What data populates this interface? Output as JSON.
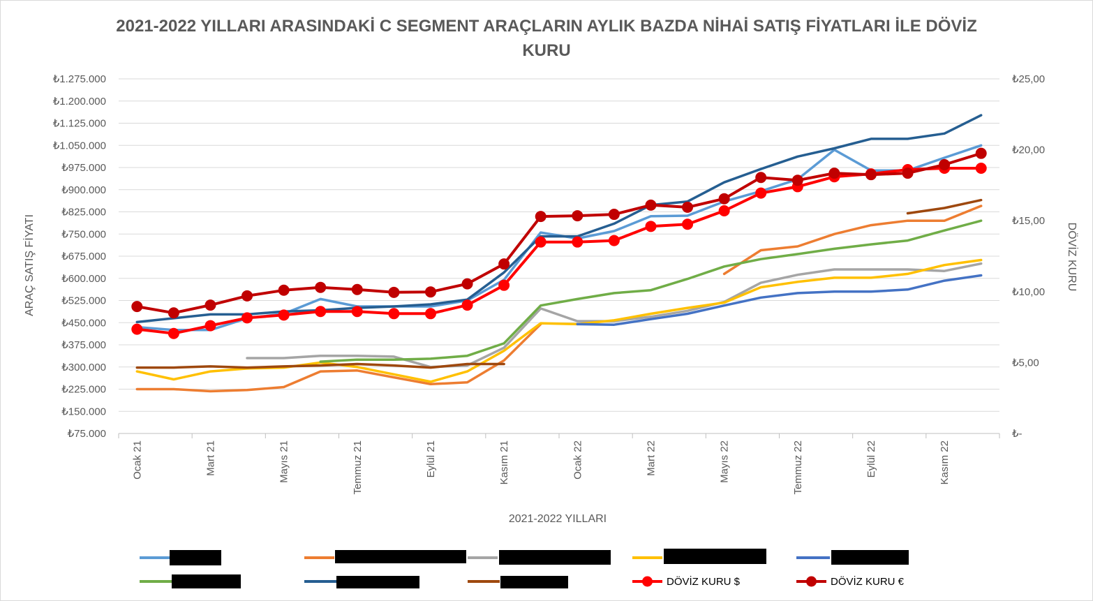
{
  "chart_data": {
    "type": "line",
    "title_lines": [
      "2021-2022 YILLARI ARASINDAKİ C SEGMENT ARAÇLARIN AYLIK BAZDA NİHAİ SATIŞ FİYATLARI İLE DÖVİZ",
      "KURU"
    ],
    "xlabel": "2021-2022 YILLARI",
    "ylabel": "ARAÇ SATIŞ FİYATI",
    "y2label": "DÖVİZ KURU",
    "ylim": [
      75000,
      1275000
    ],
    "y2lim": [
      0,
      25
    ],
    "y_ticks": [
      "₺75.000",
      "₺150.000",
      "₺225.000",
      "₺300.000",
      "₺375.000",
      "₺450.000",
      "₺525.000",
      "₺600.000",
      "₺675.000",
      "₺750.000",
      "₺825.000",
      "₺900.000",
      "₺975.000",
      "₺1.050.000",
      "₺1.125.000",
      "₺1.200.000",
      "₺1.275.000"
    ],
    "y2_ticks": [
      "₺-",
      "₺5,00",
      "₺10,00",
      "₺15,00",
      "₺20,00",
      "₺25,00"
    ],
    "x_labels": [
      "Ocak 21",
      "Mart 21",
      "Mayıs 21",
      "Temmuz 21",
      "Eylül 21",
      "Kasım 21",
      "Ocak 22",
      "Mart 22",
      "Mayıs 22",
      "Temmuz 22",
      "Eylül 22",
      "Kasım 22"
    ],
    "months": 24,
    "grid": true,
    "legend_position": "bottom",
    "series": [
      {
        "color": "#5B9BD5",
        "axis": "left",
        "marker": false,
        "values": [
          435000,
          425000,
          425000,
          465000,
          480000,
          530000,
          505000,
          505000,
          505000,
          525000,
          595000,
          755000,
          735000,
          760000,
          810000,
          812000,
          860000,
          895000,
          935000,
          1035000,
          965000,
          965000,
          1008000,
          1050000
        ]
      },
      {
        "color": "#ED7D31",
        "axis": "left",
        "marker": false,
        "values": [
          225000,
          225000,
          218000,
          222000,
          232000,
          285000,
          288000,
          265000,
          242000,
          248000,
          322000,
          445000,
          null,
          null,
          null,
          null,
          615000,
          695000,
          708000,
          750000,
          780000,
          795000,
          795000,
          845000
        ]
      },
      {
        "color": "#A5A5A5",
        "axis": "left",
        "marker": false,
        "values": [
          null,
          null,
          null,
          330000,
          330000,
          338000,
          338000,
          335000,
          300000,
          305000,
          365000,
          498000,
          455000,
          455000,
          470000,
          490000,
          520000,
          585000,
          612000,
          630000,
          630000,
          630000,
          625000,
          650000
        ]
      },
      {
        "color": "#FFC000",
        "axis": "left",
        "marker": false,
        "values": [
          285000,
          258000,
          285000,
          295000,
          298000,
          315000,
          300000,
          275000,
          250000,
          285000,
          355000,
          448000,
          445000,
          458000,
          480000,
          500000,
          518000,
          570000,
          588000,
          602000,
          602000,
          615000,
          645000,
          662000
        ]
      },
      {
        "color": "#4472C4",
        "axis": "left",
        "marker": false,
        "values": [
          null,
          null,
          null,
          null,
          null,
          null,
          null,
          null,
          null,
          null,
          null,
          null,
          445000,
          443000,
          462000,
          480000,
          508000,
          535000,
          550000,
          555000,
          555000,
          562000,
          592000,
          610000
        ]
      },
      {
        "color": "#70AD47",
        "axis": "left",
        "marker": false,
        "values": [
          null,
          null,
          null,
          null,
          null,
          318000,
          325000,
          325000,
          328000,
          338000,
          380000,
          508000,
          530000,
          550000,
          560000,
          598000,
          640000,
          665000,
          682000,
          700000,
          715000,
          728000,
          762000,
          795000
        ]
      },
      {
        "color": "#255E91",
        "axis": "left",
        "marker": false,
        "values": [
          452000,
          465000,
          478000,
          478000,
          488000,
          492000,
          500000,
          505000,
          512000,
          528000,
          620000,
          742000,
          742000,
          785000,
          848000,
          860000,
          925000,
          970000,
          1012000,
          1040000,
          1072000,
          1072000,
          1090000,
          1152000
        ]
      },
      {
        "color": "#9E480E",
        "axis": "left",
        "marker": false,
        "values": [
          298000,
          298000,
          302000,
          298000,
          302000,
          305000,
          310000,
          305000,
          298000,
          310000,
          310000,
          null,
          null,
          null,
          null,
          null,
          null,
          null,
          null,
          null,
          null,
          820000,
          838000,
          865000
        ]
      },
      {
        "name": "DÖVİZ KURU $",
        "color": "#FF0000",
        "axis": "right",
        "marker": true,
        "values": [
          7.35,
          7.05,
          7.6,
          8.15,
          8.35,
          8.6,
          8.6,
          8.45,
          8.45,
          9.05,
          10.45,
          13.5,
          13.5,
          13.6,
          14.6,
          14.75,
          15.7,
          16.95,
          17.4,
          18.1,
          18.3,
          18.6,
          18.7,
          18.7
        ]
      },
      {
        "name": "DÖVİZ KURU €",
        "color": "#C00000",
        "axis": "right",
        "marker": true,
        "values": [
          8.95,
          8.5,
          9.05,
          9.7,
          10.1,
          10.3,
          10.15,
          9.95,
          9.98,
          10.55,
          11.95,
          15.3,
          15.35,
          15.45,
          16.1,
          15.95,
          16.55,
          18.05,
          17.85,
          18.35,
          18.25,
          18.35,
          18.95,
          19.75
        ]
      }
    ]
  }
}
